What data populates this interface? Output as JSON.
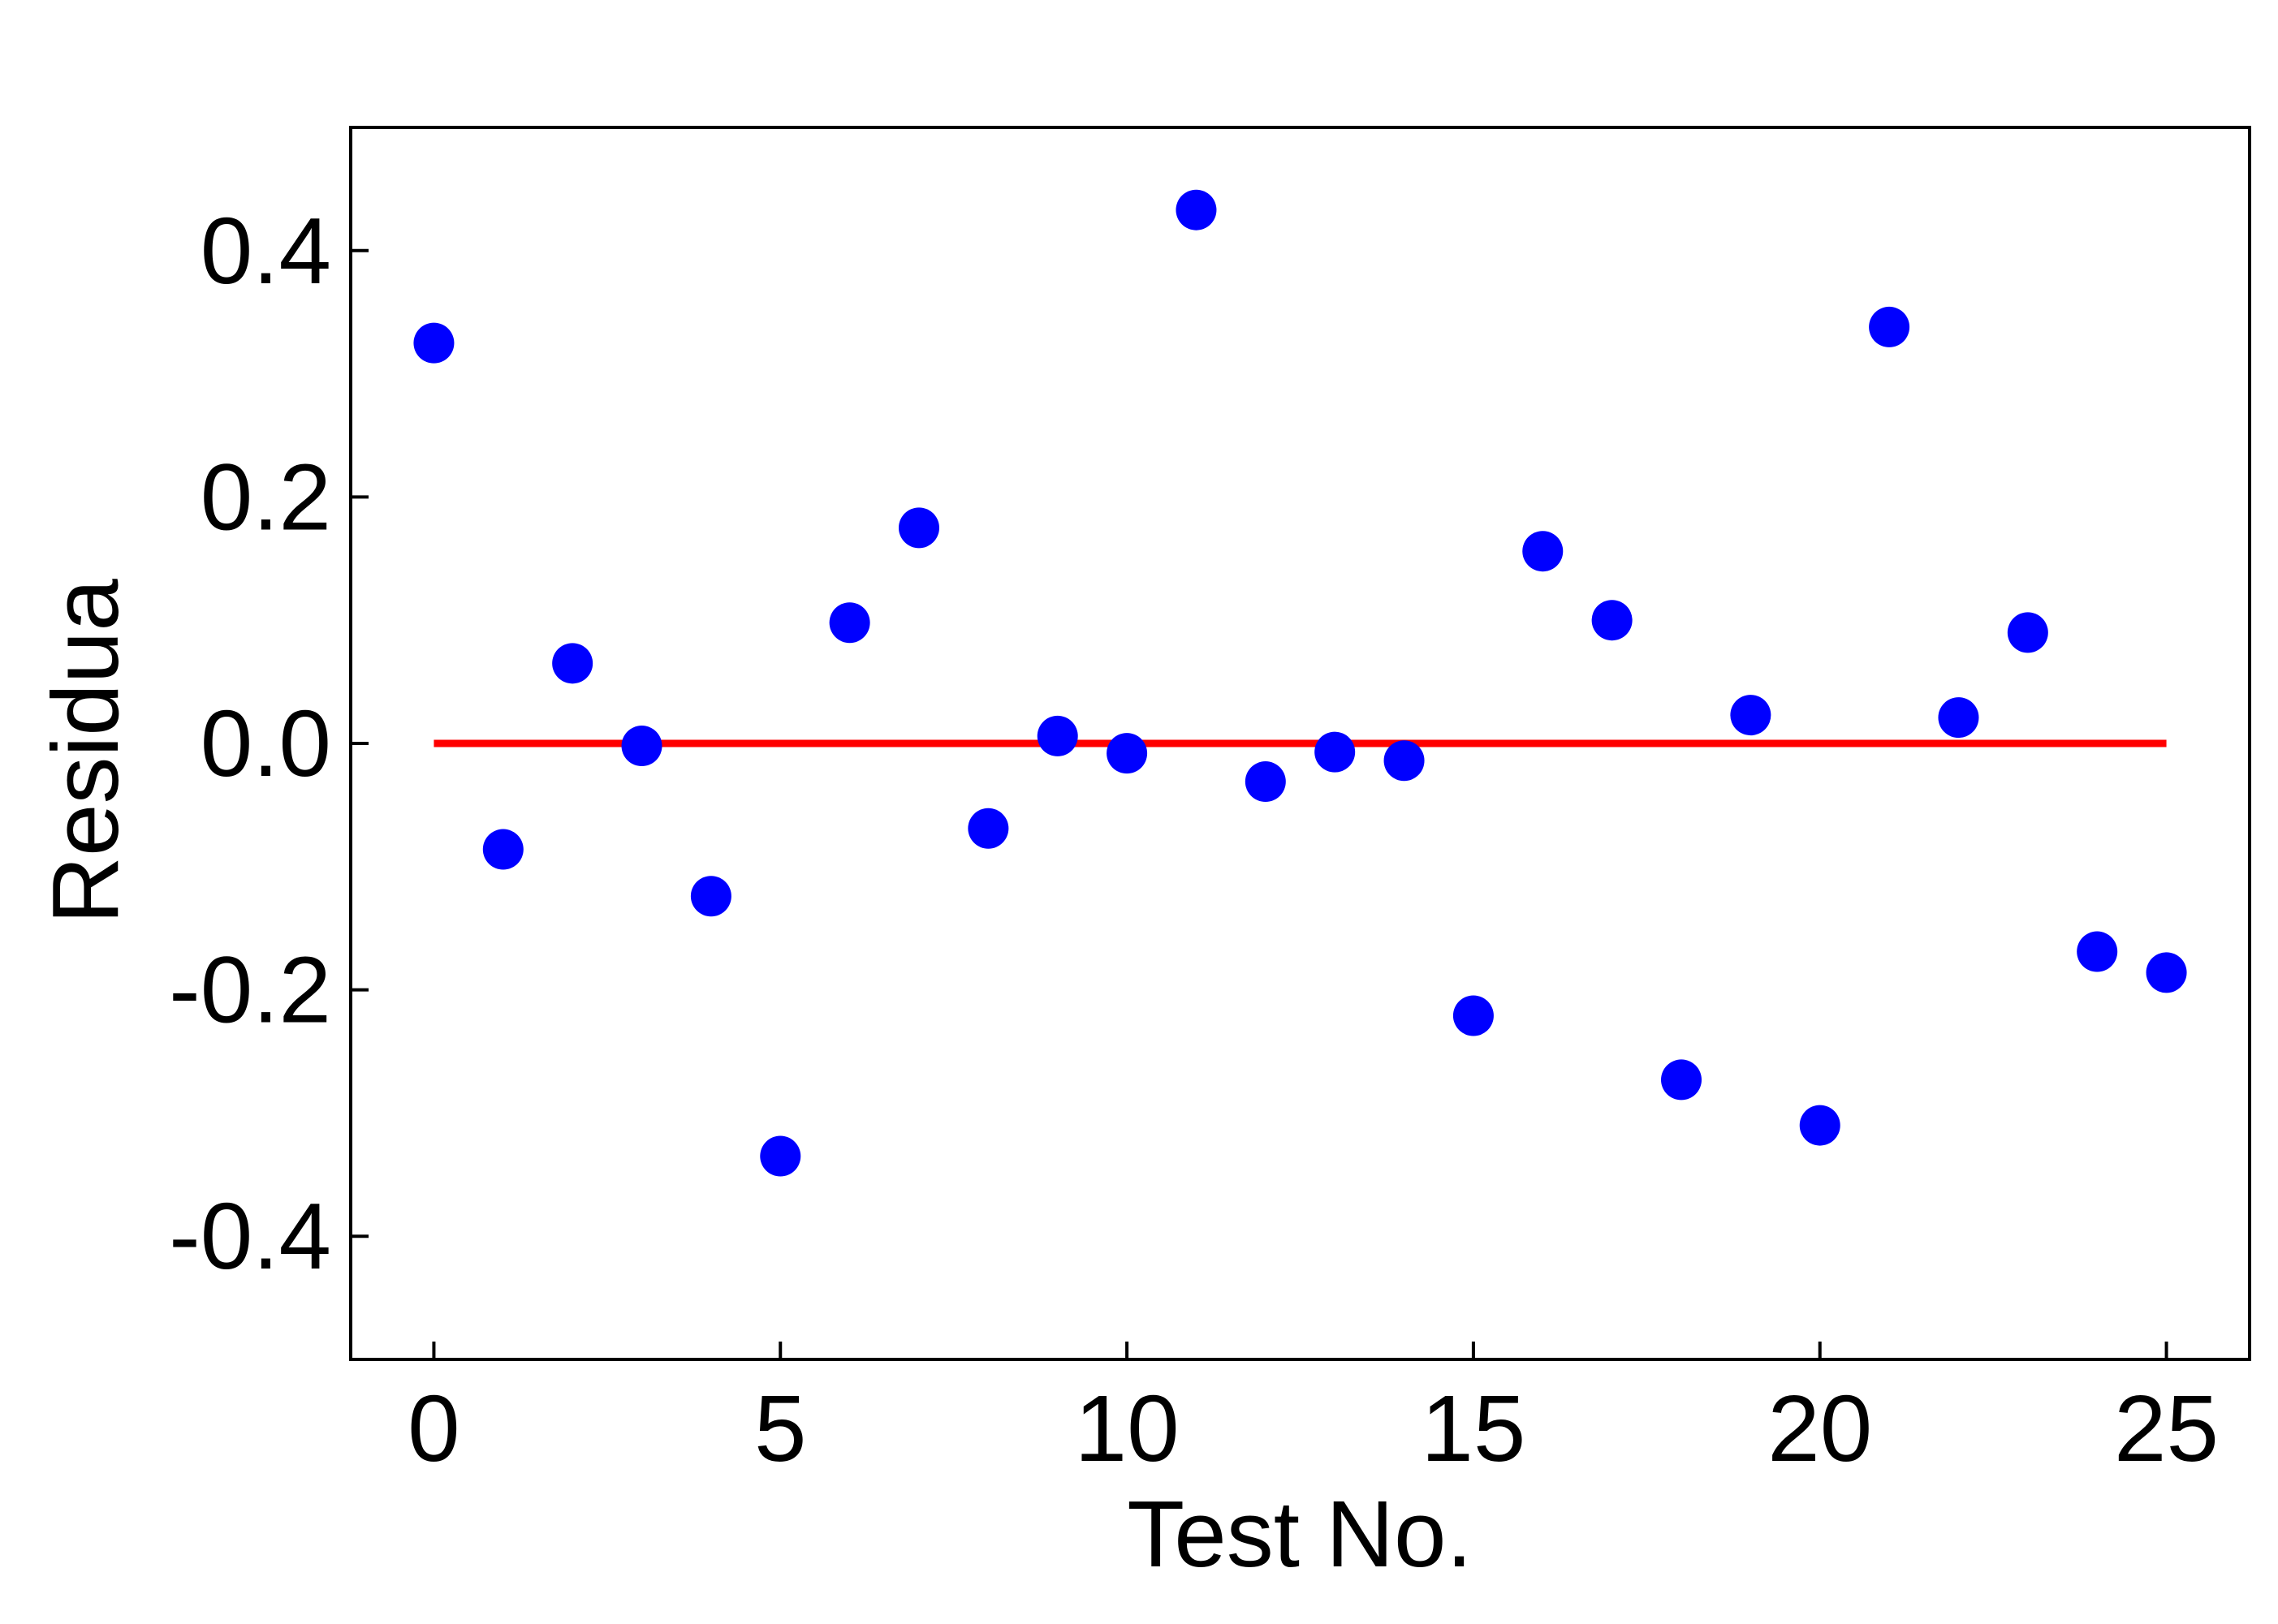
{
  "chart_data": {
    "type": "scatter",
    "title": "",
    "xlabel": "Test No.",
    "ylabel": "Residua",
    "xlim": [
      -1.2,
      26.2
    ],
    "ylim": [
      -0.5,
      0.5
    ],
    "x_ticks": [
      0,
      5,
      10,
      15,
      20,
      25
    ],
    "x_tick_labels": [
      "0",
      "5",
      "10",
      "15",
      "20",
      "25"
    ],
    "y_ticks": [
      0.4,
      0.2,
      0.0,
      -0.2,
      -0.4
    ],
    "y_tick_labels": [
      "0.4",
      "0.2",
      "0.0",
      "-0.2",
      "-0.4"
    ],
    "grid": false,
    "legend": "none",
    "series": [
      {
        "kind": "points",
        "color": "#0000ff",
        "x": [
          0,
          1,
          2,
          3,
          4,
          5,
          6,
          7,
          8,
          9,
          10,
          11,
          12,
          13,
          14,
          15,
          16,
          17,
          18,
          19,
          20,
          21,
          22,
          23,
          24,
          25
        ],
        "y": [
          0.325,
          -0.086,
          0.065,
          -0.002,
          -0.124,
          -0.335,
          0.098,
          0.175,
          -0.069,
          0.006,
          -0.008,
          0.433,
          -0.031,
          -0.007,
          -0.014,
          -0.221,
          0.156,
          0.1,
          -0.273,
          0.023,
          -0.31,
          0.338,
          0.021,
          0.09,
          -0.169,
          -0.186
        ]
      },
      {
        "kind": "line",
        "color": "#ff0000",
        "x": [
          0,
          25
        ],
        "y": [
          0.0,
          0.0
        ]
      }
    ]
  }
}
